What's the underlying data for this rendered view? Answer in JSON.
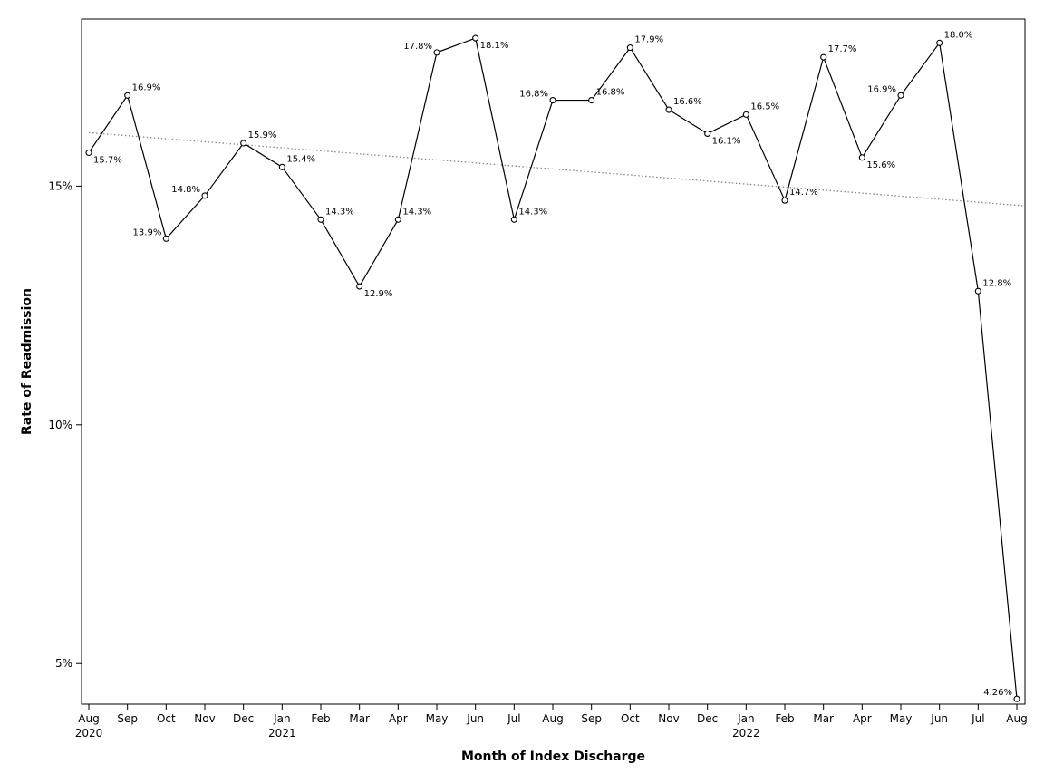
{
  "chart_data": {
    "type": "line",
    "xlabel": "Month of Index Discharge",
    "ylabel": "Rate of Readmission",
    "ylim": [
      4.15,
      18.5
    ],
    "yticks": [
      {
        "value": 5,
        "label": "5%"
      },
      {
        "value": 10,
        "label": "10%"
      },
      {
        "value": 15,
        "label": "15%"
      }
    ],
    "categories": [
      "Aug",
      "Sep",
      "Oct",
      "Nov",
      "Dec",
      "Jan",
      "Feb",
      "Mar",
      "Apr",
      "May",
      "Jun",
      "Jul",
      "Aug",
      "Sep",
      "Oct",
      "Nov",
      "Dec",
      "Jan",
      "Feb",
      "Mar",
      "Apr",
      "May",
      "Jun",
      "Jul",
      "Aug"
    ],
    "year_labels": [
      {
        "index": 0,
        "label": "2020"
      },
      {
        "index": 5,
        "label": "2021"
      },
      {
        "index": 17,
        "label": "2022"
      }
    ],
    "series": [
      {
        "values": [
          15.7,
          16.9,
          13.9,
          14.8,
          15.9,
          15.4,
          14.3,
          12.9,
          14.3,
          17.8,
          18.1,
          14.3,
          16.8,
          16.8,
          17.9,
          16.6,
          16.1,
          16.5,
          14.7,
          17.7,
          15.6,
          16.9,
          18.0,
          12.8,
          4.26
        ],
        "labels": [
          "15.7%",
          "16.9%",
          "13.9%",
          "14.8%",
          "15.9%",
          "15.4%",
          "14.3%",
          "12.9%",
          "14.3%",
          "17.8%",
          "18.1%",
          "14.3%",
          "16.8%",
          "16.8%",
          "17.9%",
          "16.6%",
          "16.1%",
          "16.5%",
          "14.7%",
          "17.7%",
          "15.6%",
          "16.9%",
          "18.0%",
          "12.8%",
          "4.26%"
        ],
        "color": "#000000"
      }
    ],
    "trendline": {
      "start": 16.12,
      "end": 14.6,
      "color": "#888888",
      "style": "dotted"
    },
    "grid": false,
    "legend": "none"
  }
}
